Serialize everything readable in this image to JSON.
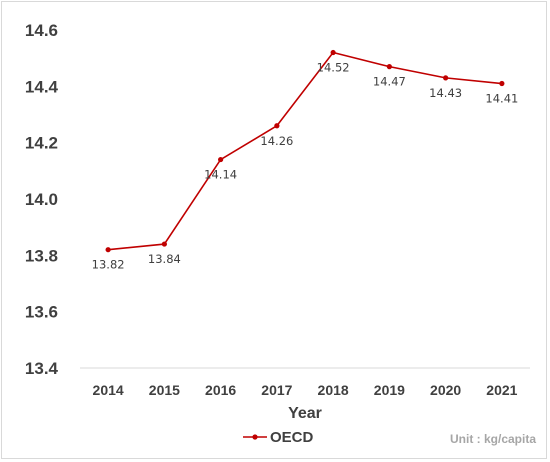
{
  "chart_data": {
    "type": "line",
    "x": [
      "2014",
      "2015",
      "2016",
      "2017",
      "2018",
      "2019",
      "2020",
      "2021"
    ],
    "series": [
      {
        "name": "OECD",
        "values": [
          13.82,
          13.84,
          14.14,
          14.26,
          14.52,
          14.47,
          14.43,
          14.41
        ],
        "labels": [
          "13.82",
          "13.84",
          "14.14",
          "14.26",
          "14.52",
          "14.47",
          "14.43",
          "14.41"
        ],
        "color": "#c00000"
      }
    ],
    "yticks": [
      "14.6",
      "14.4",
      "14.2",
      "14.0",
      "13.8",
      "13.6",
      "13.4"
    ],
    "ylim": [
      13.4,
      14.6
    ],
    "xlabel": "Year",
    "ylabel": "",
    "grid": false,
    "legend_position": "bottom-left",
    "unit_text": "Unit : kg/capita"
  }
}
